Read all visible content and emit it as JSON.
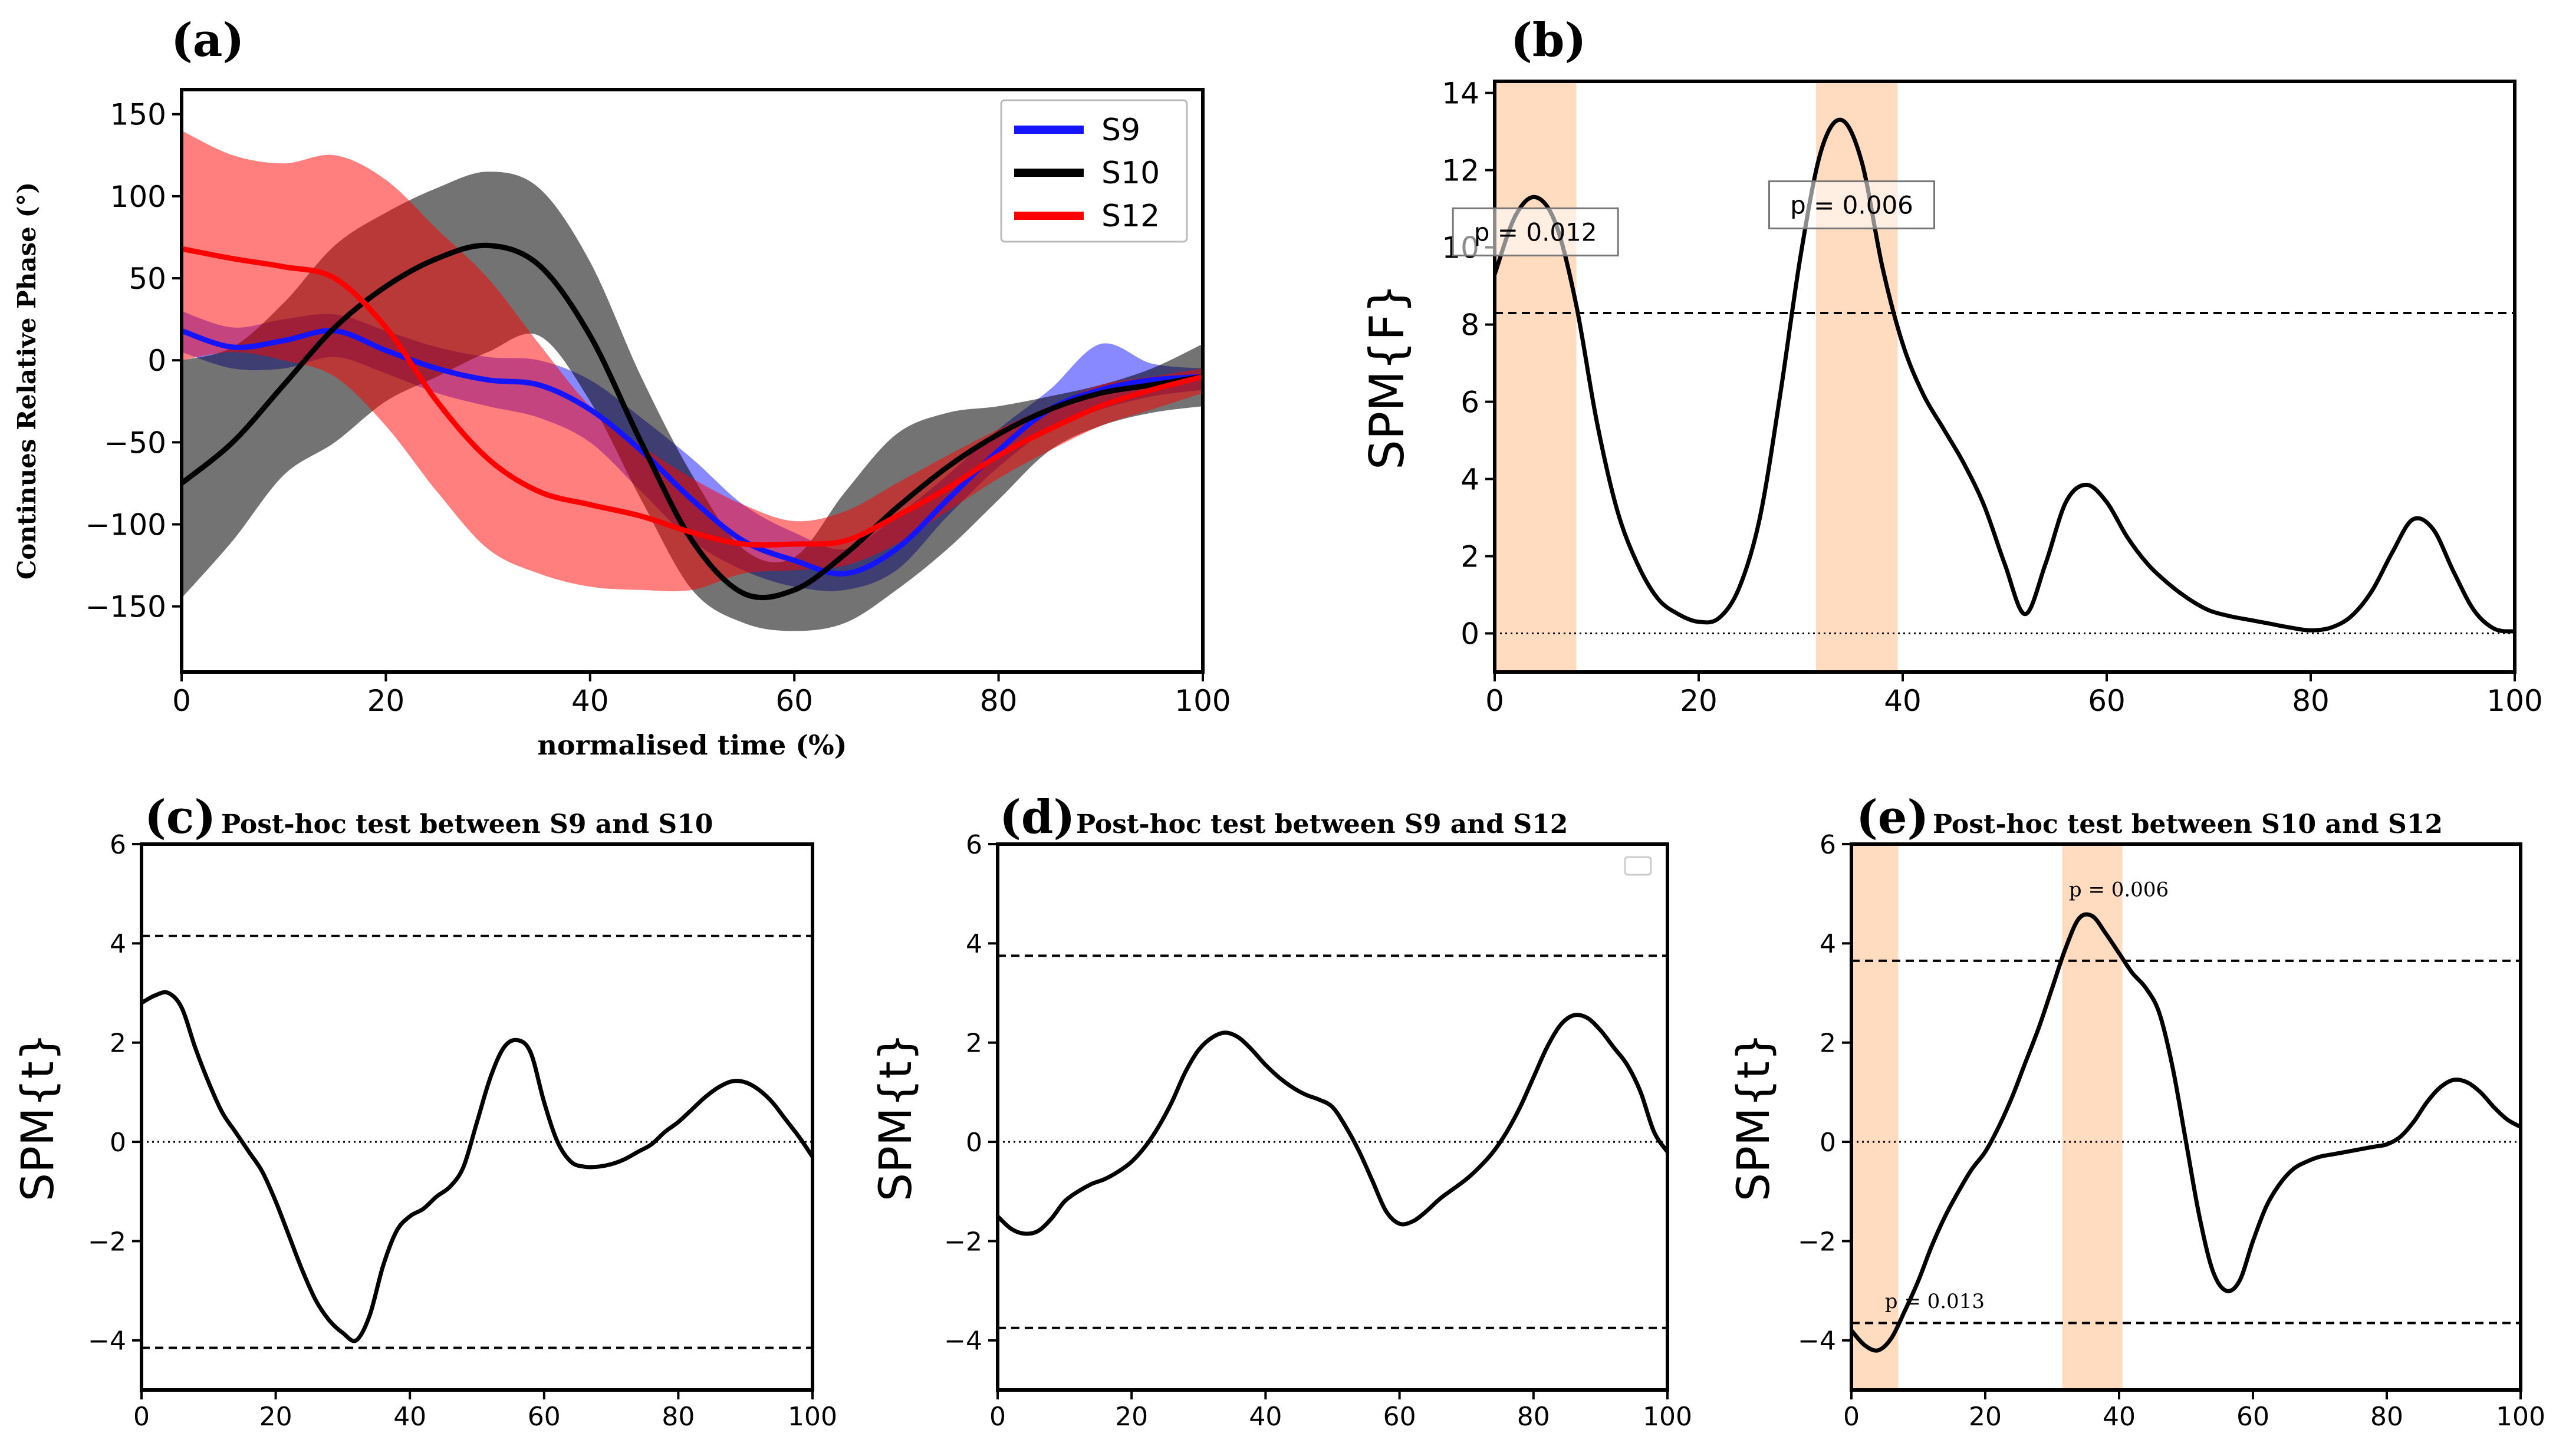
{
  "chart_data": [
    {
      "panel_label": "(a)",
      "type": "line",
      "title": "",
      "xlabel": "normalised time (%)",
      "ylabel": "Continues Relative Phase (°)",
      "xlim": [
        0,
        100
      ],
      "ylim": [
        -190,
        165
      ],
      "xticks": [
        0,
        20,
        40,
        60,
        80,
        100
      ],
      "xtick_labels": [
        "0",
        "20",
        "40",
        "60",
        "80",
        "100"
      ],
      "yticks": [
        -150,
        -100,
        -50,
        0,
        50,
        100,
        150
      ],
      "ytick_labels": [
        "−150",
        "−100",
        "−50",
        "0",
        "50",
        "100",
        "150"
      ],
      "legend": {
        "position": "top-right",
        "entries": [
          "S9",
          "S10",
          "S12"
        ]
      },
      "x": [
        0,
        5,
        10,
        15,
        20,
        25,
        30,
        35,
        40,
        45,
        50,
        55,
        60,
        65,
        70,
        75,
        80,
        85,
        90,
        95,
        100
      ],
      "series": [
        {
          "name": "S9",
          "color": "#1414ff",
          "values": [
            18,
            8,
            12,
            18,
            6,
            -5,
            -12,
            -15,
            -30,
            -55,
            -85,
            -110,
            -122,
            -130,
            -115,
            -85,
            -55,
            -30,
            -18,
            -12,
            -10
          ],
          "lower": [
            5,
            -5,
            -5,
            2,
            -8,
            -20,
            -28,
            -35,
            -50,
            -80,
            -110,
            -128,
            -138,
            -140,
            -128,
            -95,
            -65,
            -42,
            -30,
            -22,
            -18
          ],
          "upper": [
            30,
            20,
            25,
            28,
            18,
            8,
            2,
            0,
            -12,
            -35,
            -60,
            -88,
            -105,
            -115,
            -95,
            -70,
            -42,
            -18,
            10,
            -2,
            -5
          ]
        },
        {
          "name": "S10",
          "color": "#000000",
          "values": [
            -75,
            -50,
            -15,
            20,
            45,
            62,
            70,
            58,
            15,
            -50,
            -110,
            -142,
            -140,
            -118,
            -90,
            -65,
            -45,
            -30,
            -20,
            -15,
            -10
          ],
          "lower": [
            -145,
            -110,
            -70,
            -50,
            -25,
            -10,
            5,
            15,
            -25,
            -85,
            -140,
            -160,
            -165,
            -160,
            -140,
            -115,
            -85,
            -55,
            -40,
            -32,
            -28
          ],
          "upper": [
            0,
            8,
            35,
            70,
            90,
            105,
            115,
            105,
            60,
            -10,
            -70,
            -115,
            -120,
            -80,
            -45,
            -32,
            -28,
            -22,
            -15,
            -5,
            10
          ]
        },
        {
          "name": "S12",
          "color": "#ff0000",
          "values": [
            68,
            62,
            57,
            50,
            20,
            -25,
            -60,
            -80,
            -88,
            -95,
            -105,
            -112,
            -112,
            -110,
            -95,
            -78,
            -58,
            -42,
            -28,
            -18,
            -10
          ],
          "lower": [
            0,
            5,
            0,
            -10,
            -40,
            -80,
            -115,
            -130,
            -138,
            -140,
            -140,
            -130,
            -128,
            -125,
            -112,
            -92,
            -72,
            -55,
            -40,
            -30,
            -20
          ],
          "upper": [
            140,
            125,
            120,
            125,
            110,
            80,
            50,
            10,
            -28,
            -52,
            -72,
            -88,
            -98,
            -92,
            -75,
            -58,
            -42,
            -28,
            -15,
            -10,
            -5
          ]
        }
      ]
    },
    {
      "panel_label": "(b)",
      "type": "line",
      "title": "",
      "xlabel": "",
      "ylabel": "SPM{F}",
      "xlim": [
        0,
        100
      ],
      "ylim": [
        -1,
        14.3
      ],
      "xticks": [
        0,
        20,
        40,
        60,
        80,
        100
      ],
      "xtick_labels": [
        "0",
        "20",
        "40",
        "60",
        "80",
        "100"
      ],
      "yticks": [
        0,
        2,
        4,
        6,
        8,
        10,
        12,
        14
      ],
      "ytick_labels": [
        "0",
        "2",
        "4",
        "6",
        "8",
        "10",
        "12",
        "14"
      ],
      "threshold": [
        8.3
      ],
      "zero_line": 0,
      "shaded_regions": [
        [
          0,
          8
        ],
        [
          31.5,
          39.5
        ]
      ],
      "annotations": [
        {
          "text": "p = 0.012",
          "x": 4,
          "y": 10.4
        },
        {
          "text": "p = 0.006",
          "x": 35,
          "y": 11.1
        }
      ],
      "x": [
        0,
        2,
        4,
        6,
        8,
        10,
        12,
        14,
        16,
        18,
        20,
        22,
        24,
        26,
        28,
        30,
        32,
        34,
        36,
        38,
        40,
        42,
        44,
        46,
        48,
        50,
        52,
        54,
        56,
        58,
        60,
        62,
        64,
        66,
        68,
        70,
        72,
        74,
        76,
        78,
        80,
        82,
        84,
        86,
        88,
        90,
        92,
        94,
        96,
        98,
        100
      ],
      "series": [
        {
          "name": "SPM{F}",
          "color": "#000000",
          "values": [
            9.3,
            10.8,
            11.3,
            10.6,
            8.5,
            5.5,
            3.2,
            1.8,
            0.9,
            0.5,
            0.3,
            0.4,
            1.2,
            3.0,
            6.2,
            9.8,
            12.5,
            13.3,
            12.2,
            9.5,
            7.5,
            6.2,
            5.3,
            4.4,
            3.3,
            1.8,
            0.5,
            1.8,
            3.4,
            3.85,
            3.4,
            2.5,
            1.8,
            1.3,
            0.9,
            0.6,
            0.45,
            0.35,
            0.25,
            0.15,
            0.08,
            0.15,
            0.45,
            1.1,
            2.1,
            2.95,
            2.7,
            1.6,
            0.6,
            0.12,
            0.05
          ]
        }
      ]
    },
    {
      "panel_label": "(c)",
      "type": "line",
      "title": "Post-hoc test between S9 and S10",
      "xlabel": "",
      "ylabel": "SPM{t}",
      "xlim": [
        0,
        100
      ],
      "ylim": [
        -5,
        6
      ],
      "xticks": [
        0,
        20,
        40,
        60,
        80,
        100
      ],
      "xtick_labels": [
        "0",
        "20",
        "40",
        "60",
        "80",
        "100"
      ],
      "yticks": [
        -4,
        -2,
        0,
        2,
        4,
        6
      ],
      "ytick_labels": [
        "−4",
        "−2",
        "0",
        "2",
        "4",
        "6"
      ],
      "threshold": [
        4.15,
        -4.15
      ],
      "zero_line": 0,
      "shaded_regions": [],
      "annotations": [],
      "x": [
        0,
        2,
        4,
        6,
        8,
        10,
        12,
        14,
        16,
        18,
        20,
        22,
        24,
        26,
        28,
        30,
        32,
        34,
        36,
        38,
        40,
        42,
        44,
        46,
        48,
        50,
        52,
        54,
        56,
        58,
        60,
        62,
        64,
        66,
        68,
        70,
        72,
        74,
        76,
        78,
        80,
        82,
        84,
        86,
        88,
        90,
        92,
        94,
        96,
        98,
        100
      ],
      "series": [
        {
          "name": "SPM{t}",
          "color": "#000000",
          "values": [
            2.8,
            2.95,
            3.0,
            2.7,
            1.9,
            1.2,
            0.6,
            0.2,
            -0.2,
            -0.6,
            -1.2,
            -1.9,
            -2.6,
            -3.2,
            -3.6,
            -3.85,
            -4.0,
            -3.5,
            -2.5,
            -1.8,
            -1.5,
            -1.35,
            -1.1,
            -0.9,
            -0.5,
            0.4,
            1.3,
            1.9,
            2.05,
            1.8,
            0.8,
            0.0,
            -0.4,
            -0.5,
            -0.5,
            -0.45,
            -0.35,
            -0.2,
            -0.05,
            0.2,
            0.4,
            0.65,
            0.9,
            1.1,
            1.22,
            1.2,
            1.05,
            0.8,
            0.45,
            0.1,
            -0.3
          ]
        }
      ]
    },
    {
      "panel_label": "(d)",
      "type": "line",
      "title": "Post-hoc test between S9 and S12",
      "xlabel": "",
      "ylabel": "SPM{t}",
      "xlim": [
        0,
        100
      ],
      "ylim": [
        -5,
        6
      ],
      "xticks": [
        0,
        20,
        40,
        60,
        80,
        100
      ],
      "xtick_labels": [
        "0",
        "20",
        "40",
        "60",
        "80",
        "100"
      ],
      "yticks": [
        -4,
        -2,
        0,
        2,
        4,
        6
      ],
      "ytick_labels": [
        "−4",
        "−2",
        "0",
        "2",
        "4",
        "6"
      ],
      "threshold": [
        3.75,
        -3.75
      ],
      "zero_line": 0,
      "shaded_regions": [],
      "annotations": [],
      "x": [
        0,
        2,
        4,
        6,
        8,
        10,
        12,
        14,
        16,
        18,
        20,
        22,
        24,
        26,
        28,
        30,
        32,
        34,
        36,
        38,
        40,
        42,
        44,
        46,
        48,
        50,
        52,
        54,
        56,
        58,
        60,
        62,
        64,
        66,
        68,
        70,
        72,
        74,
        76,
        78,
        80,
        82,
        84,
        86,
        88,
        90,
        92,
        94,
        96,
        98,
        100
      ],
      "series": [
        {
          "name": "SPM{t}",
          "color": "#000000",
          "values": [
            -1.5,
            -1.75,
            -1.85,
            -1.8,
            -1.55,
            -1.2,
            -1.0,
            -0.85,
            -0.75,
            -0.6,
            -0.4,
            -0.1,
            0.3,
            0.8,
            1.4,
            1.85,
            2.1,
            2.2,
            2.1,
            1.85,
            1.55,
            1.3,
            1.1,
            0.95,
            0.85,
            0.7,
            0.3,
            -0.2,
            -0.8,
            -1.4,
            -1.65,
            -1.6,
            -1.4,
            -1.15,
            -0.95,
            -0.75,
            -0.5,
            -0.2,
            0.2,
            0.7,
            1.3,
            1.9,
            2.35,
            2.55,
            2.5,
            2.25,
            1.9,
            1.55,
            1.0,
            0.2,
            -0.2
          ]
        }
      ]
    },
    {
      "panel_label": "(e)",
      "type": "line",
      "title": "Post-hoc test between S10 and S12",
      "xlabel": "",
      "ylabel": "SPM{t}",
      "xlim": [
        0,
        100
      ],
      "ylim": [
        -5,
        6
      ],
      "xticks": [
        0,
        20,
        40,
        60,
        80,
        100
      ],
      "xtick_labels": [
        "0",
        "20",
        "40",
        "60",
        "80",
        "100"
      ],
      "yticks": [
        -4,
        -2,
        0,
        2,
        4,
        6
      ],
      "ytick_labels": [
        "−4",
        "−2",
        "0",
        "2",
        "4",
        "6"
      ],
      "threshold": [
        3.65,
        -3.65
      ],
      "zero_line": 0,
      "shaded_regions": [
        [
          0,
          7
        ],
        [
          31.5,
          40.5
        ]
      ],
      "annotations": [
        {
          "text": "p = 0.013",
          "x": 5,
          "y": -3.35
        },
        {
          "text": "p = 0.006",
          "x": 32.5,
          "y": 4.95
        }
      ],
      "x": [
        0,
        2,
        4,
        6,
        8,
        10,
        12,
        14,
        16,
        18,
        20,
        22,
        24,
        26,
        28,
        30,
        32,
        34,
        36,
        38,
        40,
        42,
        44,
        46,
        48,
        50,
        52,
        54,
        56,
        58,
        60,
        62,
        64,
        66,
        68,
        70,
        72,
        74,
        76,
        78,
        80,
        82,
        84,
        86,
        88,
        90,
        92,
        94,
        96,
        98,
        100
      ],
      "series": [
        {
          "name": "SPM{t}",
          "color": "#000000",
          "values": [
            -3.8,
            -4.1,
            -4.2,
            -3.95,
            -3.4,
            -2.8,
            -2.1,
            -1.5,
            -1.0,
            -0.55,
            -0.2,
            0.3,
            0.9,
            1.6,
            2.3,
            3.1,
            3.9,
            4.5,
            4.55,
            4.2,
            3.8,
            3.4,
            3.1,
            2.6,
            1.5,
            0.0,
            -1.5,
            -2.6,
            -3.0,
            -2.8,
            -2.0,
            -1.3,
            -0.85,
            -0.55,
            -0.4,
            -0.3,
            -0.25,
            -0.2,
            -0.15,
            -0.1,
            -0.05,
            0.1,
            0.4,
            0.8,
            1.1,
            1.25,
            1.2,
            1.0,
            0.7,
            0.45,
            0.3
          ]
        }
      ]
    }
  ]
}
